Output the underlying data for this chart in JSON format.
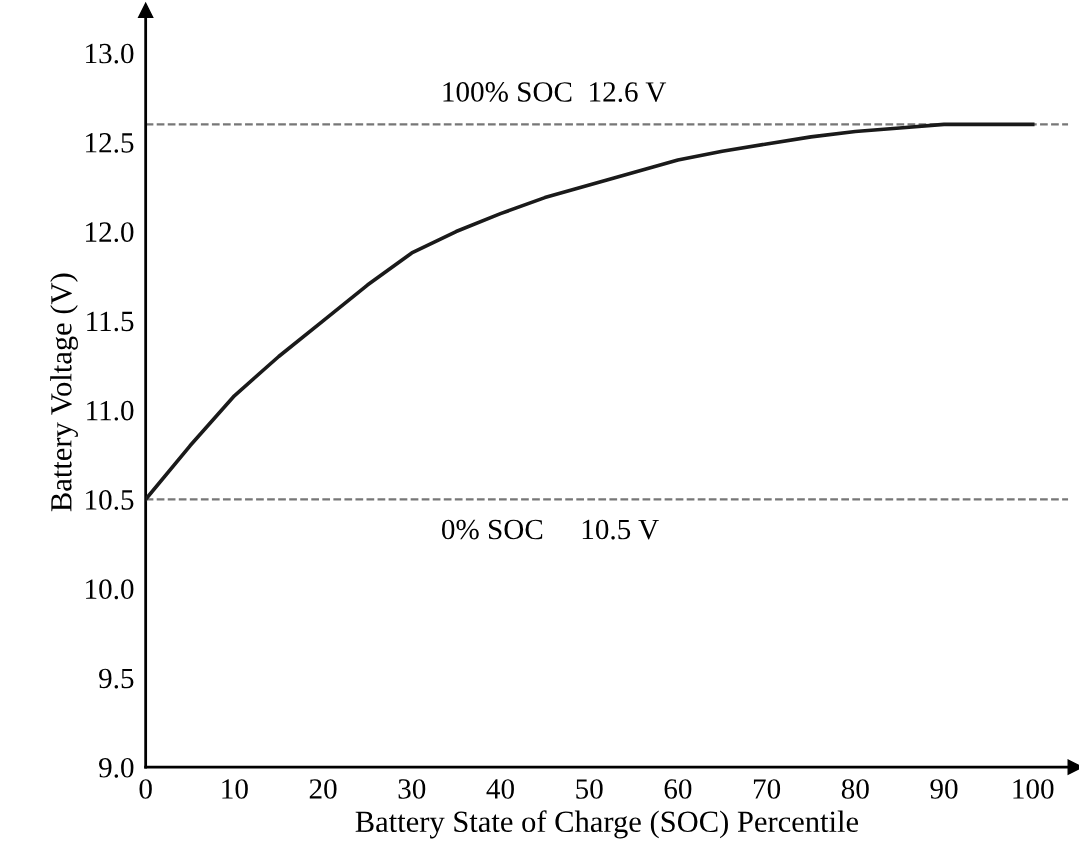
{
  "chart_data": {
    "type": "line",
    "xlabel": "Battery State of Charge (SOC) Percentile",
    "ylabel": "Battery Voltage (V)",
    "x": [
      0,
      5,
      10,
      15,
      20,
      25,
      30,
      35,
      40,
      45,
      50,
      55,
      60,
      65,
      70,
      75,
      80,
      85,
      90,
      95,
      100
    ],
    "series": [
      {
        "color": "#1a1a1a",
        "values": [
          10.5,
          10.8,
          11.08,
          11.3,
          11.5,
          11.7,
          11.88,
          12.0,
          12.1,
          12.19,
          12.26,
          12.33,
          12.4,
          12.45,
          12.49,
          12.53,
          12.56,
          12.58,
          12.6,
          12.6,
          12.6
        ]
      }
    ],
    "xlim": [
      0,
      104
    ],
    "ylim": [
      9.0,
      13.2
    ],
    "xticks": [
      0,
      10,
      20,
      30,
      40,
      50,
      60,
      70,
      80,
      90,
      100
    ],
    "yticks": [
      {
        "value": 9.0,
        "label": "9.0"
      },
      {
        "value": 9.5,
        "label": "9.5"
      },
      {
        "value": 10.0,
        "label": "10.0"
      },
      {
        "value": 10.5,
        "label": "10.5"
      },
      {
        "value": 11.0,
        "label": "11.0"
      },
      {
        "value": 11.5,
        "label": "11.5"
      },
      {
        "value": 12.0,
        "label": "12.0"
      },
      {
        "value": 12.5,
        "label": "12.5"
      },
      {
        "value": 13.0,
        "label": "13.0"
      }
    ],
    "ref_lines": [
      {
        "axis": "y",
        "value": 12.6,
        "label": "100% SOC  12.6 V",
        "color": "#777777",
        "line_style": "dashed"
      },
      {
        "axis": "y",
        "value": 10.5,
        "label": "0% SOC     10.5 V",
        "color": "#777777",
        "line_style": "dashed"
      }
    ],
    "grid": false,
    "legend": false,
    "marker": "none",
    "line_style": "solid"
  }
}
